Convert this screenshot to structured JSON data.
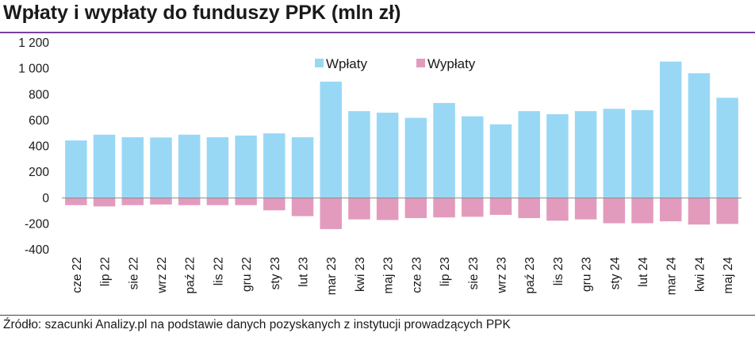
{
  "title": "Wpłaty i wypłaty do funduszy PPK (mln zł)",
  "source": "Źródło: szacunki Analizy.pl na podstawie danych pozyskanych z instytucji prowadzących PPK",
  "colors": {
    "rule": "#7b3fa0",
    "inflow": "#99d8f5",
    "outflow": "#e39bbd",
    "zero_line": "#888888",
    "text": "#1a1a1a"
  },
  "chart_data": {
    "type": "bar",
    "title": "Wpłaty i wypłaty do funduszy PPK (mln zł)",
    "xlabel": "",
    "ylabel": "",
    "ylim": [
      -400,
      1200
    ],
    "yticks": [
      1200,
      1000,
      800,
      600,
      400,
      200,
      0,
      -200,
      -400
    ],
    "ytick_labels": [
      "1 200",
      "1 000",
      "800",
      "600",
      "400",
      "200",
      "0",
      "-200",
      "-400"
    ],
    "grid": false,
    "legend": "top-center",
    "stacked": true,
    "categories": [
      "cze 22",
      "lip 22",
      "sie 22",
      "wrz 22",
      "paź 22",
      "lis 22",
      "gru 22",
      "sty 23",
      "lut 23",
      "mar 23",
      "kwi 23",
      "maj 23",
      "cze 23",
      "lip 23",
      "sie 23",
      "wrz 23",
      "paź 23",
      "lis 23",
      "gru 23",
      "sty 24",
      "lut 24",
      "mar 24",
      "kwi 24",
      "maj 24"
    ],
    "series": [
      {
        "name": "Wpłaty",
        "values": [
          445,
          490,
          470,
          468,
          490,
          470,
          483,
          500,
          470,
          900,
          672,
          660,
          620,
          735,
          632,
          570,
          672,
          648,
          672,
          690,
          680,
          1055,
          965,
          775
        ]
      },
      {
        "name": "Wypłaty",
        "values": [
          -55,
          -65,
          -55,
          -50,
          -55,
          -55,
          -55,
          -95,
          -140,
          -240,
          -165,
          -170,
          -155,
          -150,
          -145,
          -130,
          -155,
          -175,
          -165,
          -195,
          -195,
          -180,
          -205,
          -200
        ]
      }
    ]
  }
}
